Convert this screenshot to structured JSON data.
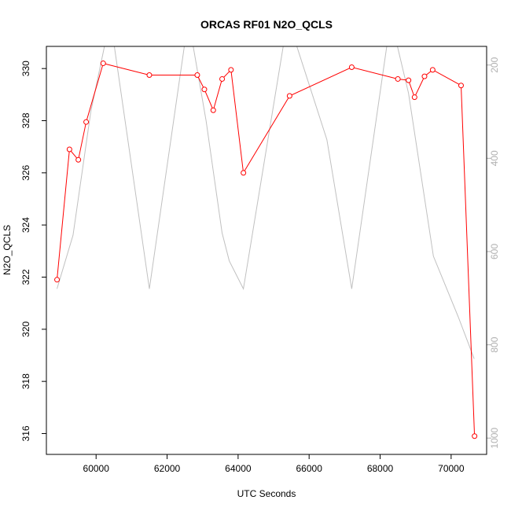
{
  "chart_data": {
    "type": "line",
    "title": "ORCAS RF01 N2O_QCLS",
    "xlabel": "UTC Seconds",
    "ylabel": "N2O_QCLS",
    "xlim": [
      58600,
      71000
    ],
    "ylim": [
      315.2,
      330.85
    ],
    "y2lim": [
      1035,
      160
    ],
    "xticks": [
      60000,
      62000,
      64000,
      66000,
      68000,
      70000
    ],
    "yticks": [
      316,
      318,
      320,
      322,
      324,
      326,
      328,
      330
    ],
    "y2ticks": [
      200,
      400,
      600,
      800,
      1000
    ],
    "grid": false,
    "colors": {
      "primary": "#ff0000",
      "secondary": "#c0c0c0"
    },
    "series": [
      {
        "x": [
          58900,
          59250,
          59500,
          59720,
          60200,
          61500,
          62850,
          63050,
          63300,
          63550,
          63800,
          64150,
          65450,
          67200,
          68500,
          68800,
          68970,
          69250,
          69480,
          70280,
          70660
        ],
        "y": [
          321.9,
          326.9,
          326.5,
          327.95,
          330.2,
          329.75,
          329.75,
          329.2,
          328.4,
          329.6,
          329.95,
          326.0,
          328.95,
          330.05,
          329.6,
          329.55,
          328.9,
          329.7,
          329.95,
          329.35,
          315.9
        ],
        "axis": "left"
      },
      {
        "x": [
          58900,
          59350,
          59850,
          60400,
          61500,
          62600,
          63100,
          63550,
          63750,
          64150,
          65400,
          66500,
          67200,
          68300,
          68800,
          69500,
          70200,
          70650
        ],
        "y": [
          680,
          565,
          300,
          100,
          680,
          100,
          320,
          560,
          620,
          680,
          100,
          360,
          680,
          100,
          260,
          610,
          740,
          830
        ],
        "axis": "right"
      }
    ]
  }
}
